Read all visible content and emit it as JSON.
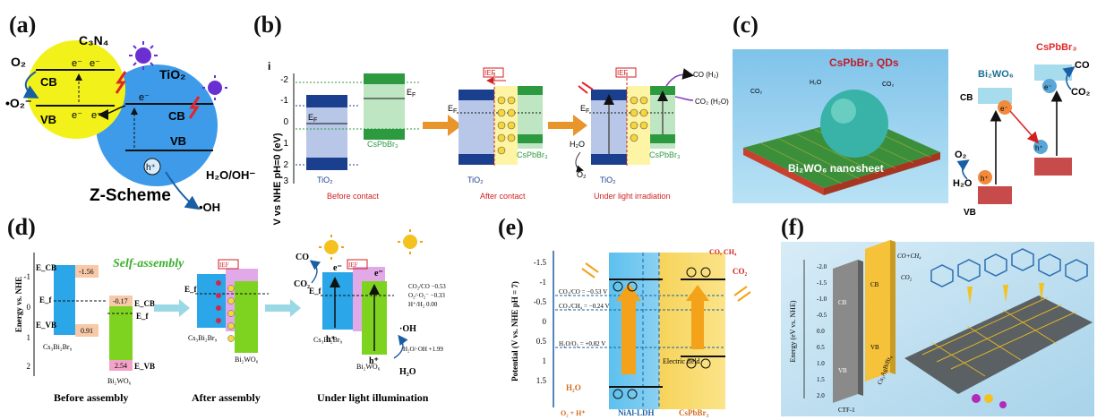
{
  "panels": {
    "a": {
      "label": "(a)",
      "scheme_title": "Z-Scheme",
      "semiconductor1": "C₃N₄",
      "semiconductor2": "TiO₂",
      "cb": "CB",
      "vb": "VB",
      "electron": "e⁻",
      "hole": "h⁺",
      "o2": "O₂",
      "superoxide": "•O₂⁻",
      "water": "H₂O/OH⁻",
      "hydroxyl": "•OH",
      "colors": {
        "c3n4": "#f2f21a",
        "tio2": "#3d9be9"
      }
    },
    "b": {
      "label": "(b)",
      "sub_label": "i",
      "y_axis": "V vs NHE pH=0 (eV)",
      "y_ticks": [
        "-2",
        "-1",
        "0",
        "1",
        "2",
        "3"
      ],
      "ef": "Eₙ",
      "ef_label": "E",
      "ef_sub": "F",
      "tio2": "TiO₂",
      "cspbbr3": "CsPbBr₃",
      "ief": "IEF",
      "h2o": "H₂O",
      "o2": "O₂",
      "co_h2": "CO (H₂)",
      "co2_h2o": "CO₂ (H₂O)",
      "holes": "h⁺ h⁺",
      "stages": [
        "Before contact",
        "After contact",
        "Under light irradiation"
      ],
      "colors": {
        "tio2_dark": "#1b3f8f",
        "tio2_light": "#b8c6e8",
        "csp_dark": "#2e9a3f",
        "csp_light": "#bfe6c2",
        "arrow": "#e8952b"
      }
    },
    "c": {
      "label": "(c)",
      "qds": "CsPbBr₃ QDs",
      "nanosheet": "Bi₂WO₆ nanosheet",
      "bi2wo6": "Bi₂WO₆",
      "cspbbr3": "CsPbBr₃",
      "cb": "CB",
      "vb": "VB",
      "co": "CO",
      "co2": "CO₂",
      "o2": "O₂",
      "h2o": "H₂O",
      "electron": "e⁻",
      "hole": "h⁺",
      "co2_small": "CO₂",
      "h2o_small": "H₂O"
    },
    "d": {
      "label": "(d)",
      "y_axis": "Energy vs. NHE",
      "title": "Self-assembly",
      "ecb": "E_CB",
      "evb": "E_VB",
      "ef": "E_f",
      "val_cb1": "-1.56",
      "val_vb1": "0.91",
      "val_cb2": "-0.17",
      "val_vb2": "2.54",
      "ticks": [
        "-1",
        "0",
        "1",
        "2"
      ],
      "cs3": "Cs₃Bi₂Br₉",
      "bi2wo6": "Bi₂WO₆",
      "ief": "IEF",
      "co": "CO",
      "co2": "CO₂",
      "oh": "·OH",
      "h2o": "H₂O",
      "potentials": [
        "CO₂/CO −0.53",
        "O₂/·O₂⁻ −0.33",
        "H⁺/H₂ 0.00"
      ],
      "h2o_oh": "H₂O/·OH +1.99",
      "electron": "e⁻",
      "hole": "h⁺",
      "captions": [
        "Before assembly",
        "After assembly",
        "Under light illumination"
      ]
    },
    "e": {
      "label": "(e)",
      "y_axis": "Potential (V vs. NHE pH = 7)",
      "ticks": [
        "-1.5",
        "-1",
        "-0.5",
        "0",
        "0.5",
        "1",
        "1.5"
      ],
      "potentials": [
        "CO₂/CO = −0.53 V",
        "CO₂/CH₄ = −0.24 V",
        "H₂O/O₂ = +0.82 V"
      ],
      "products": "CO, CH₄",
      "co2": "CO₂",
      "h2o": "H₂O",
      "o2": "O₂ + H⁺",
      "field": "Electric field",
      "niallah": "NiAl-LDH",
      "cspbbr3": "CsPbBr₃"
    },
    "f": {
      "label": "(f)",
      "y_axis": "Energy (eV vs. NHE)",
      "ticks": [
        "-2.0",
        "-1.5",
        "-1.0",
        "-0.5",
        "0.0",
        "0.5",
        "1.0",
        "1.5",
        "2.0"
      ],
      "cb": "CB",
      "vb": "VB",
      "cti": "CTF-1",
      "cs2": "Cs₂AgBiBr₆",
      "co_ch4": "CO+CH₄",
      "co2": "CO₂"
    }
  }
}
